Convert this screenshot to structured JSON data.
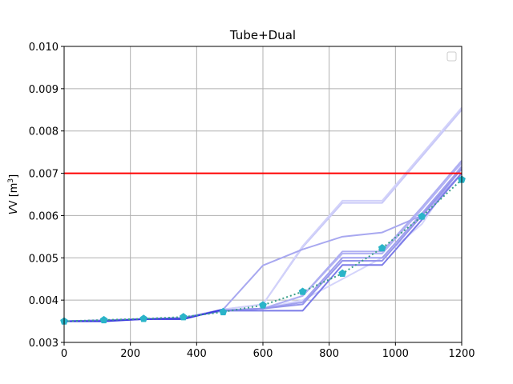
{
  "chart_data": {
    "type": "line",
    "title": "Tube+Dual",
    "xlabel": "",
    "ylabel_main": "V [m",
    "ylabel_sup": "3",
    "ylabel_close": "]",
    "xlim": [
      0,
      1200
    ],
    "ylim": [
      0.003,
      0.01
    ],
    "xticks": [
      0,
      200,
      400,
      600,
      800,
      1000,
      1200
    ],
    "xtick_labels": [
      "0",
      "200",
      "400",
      "600",
      "800",
      "1000",
      "1200"
    ],
    "yticks": [
      0.003,
      0.004,
      0.005,
      0.006,
      0.007,
      0.008,
      0.009,
      0.01
    ],
    "ytick_labels": [
      "0.003",
      "0.004",
      "0.005",
      "0.006",
      "0.007",
      "0.008",
      "0.009",
      "0.010"
    ],
    "grid": true,
    "legend": "top-right",
    "threshold": {
      "y": 0.007,
      "color": "#ff0000"
    },
    "series": [
      {
        "color": "#d4d4fb",
        "x": [
          0,
          120,
          240,
          360,
          480,
          600,
          720,
          840,
          960,
          1080,
          1200
        ],
        "values": [
          0.0035,
          0.00352,
          0.00355,
          0.00358,
          0.00375,
          0.0038,
          0.004,
          0.0045,
          0.005,
          0.0058,
          0.0072
        ]
      },
      {
        "color": "#c9c9f8",
        "x": [
          0,
          120,
          240,
          360,
          480,
          600,
          720,
          840,
          960,
          1080,
          1200
        ],
        "values": [
          0.0035,
          0.00352,
          0.00355,
          0.00358,
          0.00378,
          0.0039,
          0.00525,
          0.0063,
          0.0063,
          0.0074,
          0.0085
        ]
      },
      {
        "color": "#d2d2fa",
        "x": [
          0,
          120,
          240,
          360,
          480,
          600,
          720,
          840,
          960,
          1080,
          1200
        ],
        "values": [
          0.0035,
          0.00352,
          0.00355,
          0.00358,
          0.00378,
          0.0039,
          0.00528,
          0.00635,
          0.00635,
          0.00745,
          0.00855
        ]
      },
      {
        "color": "#b4b4f4",
        "x": [
          0,
          120,
          240,
          360,
          480,
          600,
          720,
          840,
          960,
          1080,
          1200
        ],
        "values": [
          0.0035,
          0.00352,
          0.00355,
          0.00358,
          0.00376,
          0.0038,
          0.0041,
          0.0051,
          0.0051,
          0.00615,
          0.00725
        ]
      },
      {
        "color": "#aeaef2",
        "x": [
          0,
          120,
          240,
          360,
          480,
          600,
          720,
          840,
          960,
          1080,
          1200
        ],
        "values": [
          0.0035,
          0.00352,
          0.00355,
          0.00358,
          0.00376,
          0.0038,
          0.0041,
          0.00515,
          0.00515,
          0.0062,
          0.0073
        ]
      },
      {
        "color": "#a8a8f0",
        "x": [
          0,
          120,
          240,
          360,
          480,
          600,
          720,
          840,
          960,
          1080,
          1200
        ],
        "values": [
          0.0035,
          0.00352,
          0.00355,
          0.00358,
          0.00378,
          0.00482,
          0.0052,
          0.0055,
          0.0056,
          0.006,
          0.007
        ]
      },
      {
        "color": "#a0a0ee",
        "x": [
          0,
          120,
          240,
          360,
          480,
          600,
          720,
          840,
          960,
          1080,
          1200
        ],
        "values": [
          0.0035,
          0.00352,
          0.00355,
          0.00358,
          0.00376,
          0.0038,
          0.00395,
          0.005,
          0.005,
          0.00605,
          0.00715
        ]
      },
      {
        "color": "#9696ec",
        "x": [
          0,
          120,
          240,
          360,
          480,
          600,
          720,
          840,
          960,
          1080,
          1200
        ],
        "values": [
          0.0035,
          0.00352,
          0.00355,
          0.00358,
          0.00376,
          0.0038,
          0.0039,
          0.00493,
          0.00493,
          0.006,
          0.0071
        ]
      },
      {
        "color": "#7c7ce8",
        "x": [
          0,
          120,
          240,
          360,
          480,
          600,
          720,
          840,
          960,
          1080,
          1200
        ],
        "values": [
          0.0035,
          0.00352,
          0.00355,
          0.00358,
          0.00375,
          0.00375,
          0.00375,
          0.00483,
          0.00483,
          0.0059,
          0.007
        ]
      },
      {
        "color": "#3a3ade",
        "x": [
          0,
          120,
          240,
          360,
          480
        ],
        "values": [
          0.0035,
          0.0035,
          0.00355,
          0.00355,
          0.00378
        ]
      }
    ],
    "mean_series": {
      "color": "#2ab4c8",
      "line_color": "#3aa08a",
      "x": [
        0,
        120,
        240,
        360,
        480,
        600,
        720,
        840,
        960,
        1080,
        1200
      ],
      "values": [
        0.0035,
        0.00353,
        0.00356,
        0.0036,
        0.00372,
        0.00388,
        0.0042,
        0.00463,
        0.00523,
        0.00598,
        0.00685
      ]
    }
  }
}
